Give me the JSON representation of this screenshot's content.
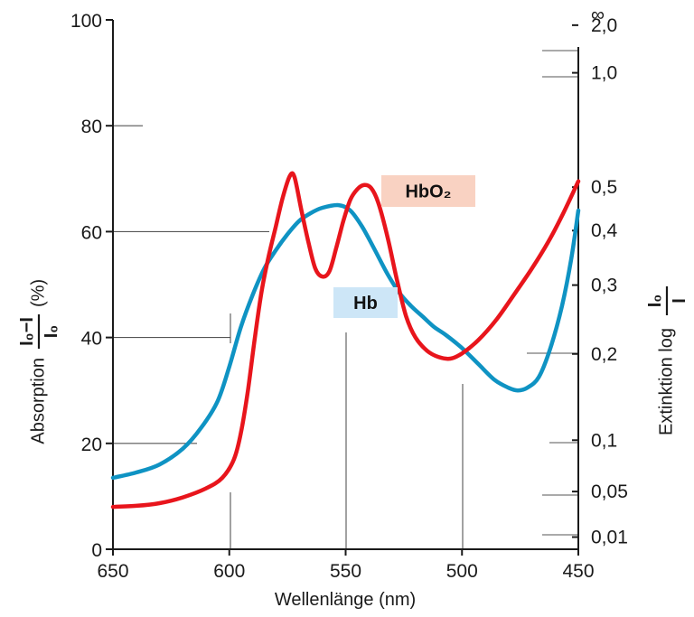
{
  "chart_data": {
    "type": "line",
    "x_axis": {
      "label": "Wellenlänge (nm)",
      "range": [
        650,
        450
      ],
      "ticks": [
        "650",
        "600",
        "550",
        "500",
        "450"
      ]
    },
    "y_left": {
      "label_prefix": "Absorption",
      "frac_num": "I₀−I",
      "frac_den": "I₀",
      "label_suffix": "(%)",
      "range": [
        0,
        100
      ],
      "ticks": [
        "0",
        "20",
        "40",
        "60",
        "80",
        "100"
      ]
    },
    "y_right": {
      "label_prefix": "Extinktion log",
      "frac_num": "I₀",
      "frac_den": "I",
      "ticks": [
        {
          "label": "∞",
          "pct": 100
        },
        {
          "label": "2,0",
          "pct": 99
        },
        {
          "label": "1,0",
          "pct": 90
        },
        {
          "label": "0,5",
          "pct": 68.4
        },
        {
          "label": "0,4",
          "pct": 60.2
        },
        {
          "label": "0,3",
          "pct": 49.9
        },
        {
          "label": "0,2",
          "pct": 36.9
        },
        {
          "label": "0,1",
          "pct": 20.6
        },
        {
          "label": "0,05",
          "pct": 10.9
        },
        {
          "label": "0,01",
          "pct": 2.3
        }
      ]
    },
    "grid": false,
    "series": [
      {
        "name": "Hb",
        "color": "#0f93c3",
        "label_bg": "#cde6f7",
        "points": [
          [
            650,
            13.5
          ],
          [
            640,
            14.5
          ],
          [
            630,
            16
          ],
          [
            620,
            19
          ],
          [
            612,
            23
          ],
          [
            605,
            28
          ],
          [
            600,
            34.5
          ],
          [
            595,
            42
          ],
          [
            590,
            48
          ],
          [
            585,
            53
          ],
          [
            580,
            56.5
          ],
          [
            575,
            59.5
          ],
          [
            570,
            62
          ],
          [
            565,
            63.5
          ],
          [
            560,
            64.5
          ],
          [
            553,
            65
          ],
          [
            548,
            64
          ],
          [
            543,
            61
          ],
          [
            538,
            57
          ],
          [
            532,
            52
          ],
          [
            527,
            48.5
          ],
          [
            522,
            46
          ],
          [
            517,
            44
          ],
          [
            512,
            42
          ],
          [
            507,
            40.5
          ],
          [
            500,
            38
          ],
          [
            493,
            35
          ],
          [
            486,
            32
          ],
          [
            480,
            30.5
          ],
          [
            476,
            30
          ],
          [
            472,
            30.5
          ],
          [
            467,
            32.5
          ],
          [
            462,
            38
          ],
          [
            457,
            46
          ],
          [
            453,
            55
          ],
          [
            450,
            64
          ]
        ]
      },
      {
        "name": "HbO₂",
        "color": "#e8151c",
        "label_bg": "#f9d2c2",
        "points": [
          [
            650,
            8
          ],
          [
            640,
            8.2
          ],
          [
            630,
            8.7
          ],
          [
            620,
            9.8
          ],
          [
            610,
            11.5
          ],
          [
            603,
            13.5
          ],
          [
            598,
            17
          ],
          [
            595,
            22
          ],
          [
            592,
            30
          ],
          [
            589,
            40
          ],
          [
            586,
            49
          ],
          [
            583,
            55.5
          ],
          [
            580,
            61
          ],
          [
            577,
            66.5
          ],
          [
            574,
            70.5
          ],
          [
            572,
            70.3
          ],
          [
            569,
            64
          ],
          [
            566,
            58
          ],
          [
            563,
            53
          ],
          [
            560,
            51.5
          ],
          [
            557,
            52.5
          ],
          [
            554,
            57
          ],
          [
            551,
            62
          ],
          [
            548,
            66
          ],
          [
            545,
            68
          ],
          [
            542,
            68.8
          ],
          [
            539,
            68.2
          ],
          [
            536,
            65.5
          ],
          [
            532,
            59
          ],
          [
            528,
            51
          ],
          [
            524,
            44
          ],
          [
            520,
            40
          ],
          [
            515,
            37.5
          ],
          [
            510,
            36.3
          ],
          [
            505,
            36
          ],
          [
            500,
            37
          ],
          [
            493,
            39.5
          ],
          [
            485,
            43.5
          ],
          [
            477,
            48.5
          ],
          [
            470,
            53
          ],
          [
            463,
            58
          ],
          [
            457,
            63
          ],
          [
            450,
            69.5
          ]
        ]
      }
    ],
    "legend": "inline labels (HbO₂ top-center, Hb center)"
  }
}
